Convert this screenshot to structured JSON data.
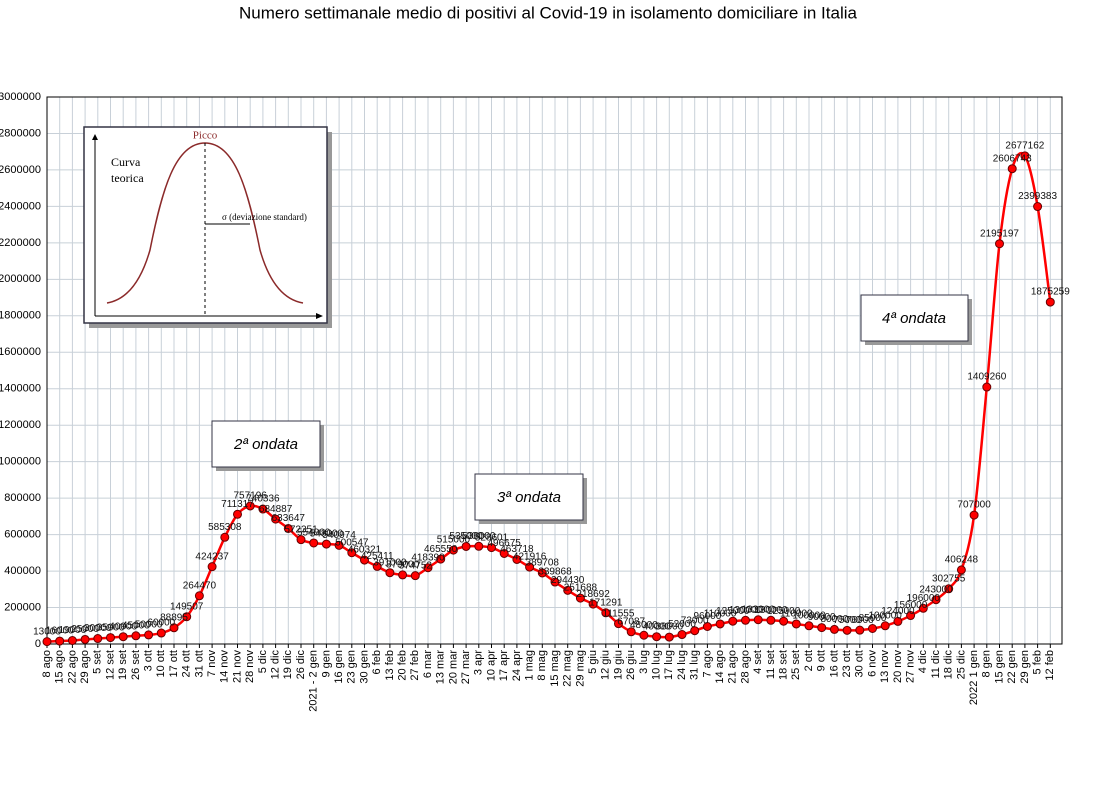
{
  "chart_data": {
    "type": "line",
    "title": "Numero settimanale medio di positivi al Covid-19  in isolamento domiciliare in Italia",
    "categories": [
      "8 ago",
      "15 ago",
      "22 ago",
      "29 ago",
      "5 set",
      "12 set",
      "19 set",
      "26 set",
      "3 ott",
      "10 ott",
      "17 ott",
      "24 ott",
      "31 ott",
      "7 nov",
      "14 nov",
      "21 nov",
      "28 nov",
      "5 dic",
      "12 dic",
      "19 dic",
      "26 dic",
      "2021 - 2 gen",
      "9 gen",
      "16 gen",
      "23 gen",
      "30 gen",
      "6 feb",
      "13 feb",
      "20 feb",
      "27 feb",
      "6 mar",
      "13 mar",
      "20 mar",
      "27 mar",
      "3 apr",
      "10 apr",
      "17 apr",
      "24 apr",
      "1 mag",
      "8 mag",
      "15 mag",
      "22 mag",
      "29 mag",
      "5 giu",
      "12 giu",
      "19 giu",
      "26 giu",
      "3 lug",
      "10 lug",
      "17 lug",
      "24 lug",
      "31 lug",
      "7 ago",
      "14 ago",
      "21 ago",
      "28 ago",
      "4 set",
      "11 set",
      "18 set",
      "25 set",
      "2 ott",
      "9 ott",
      "16 ott",
      "23 ott",
      "30 ott",
      "6 nov",
      "13 nov",
      "20 nov",
      "27 nov",
      "4 dic",
      "11 dic",
      "18 dic",
      "25 dic",
      "2022 1 gen",
      "8 gen",
      "15 gen",
      "22 gen",
      "29 gen",
      "5 feb",
      "12 feb"
    ],
    "series": [
      {
        "name": "Positivi in isolamento domiciliare",
        "color": "#ff0000",
        "values": [
          13000,
          16000,
          19000,
          25000,
          30000,
          35000,
          40000,
          45000,
          50000,
          60000,
          88895,
          149507,
          264470,
          424237,
          585308,
          711317,
          757196,
          740336,
          684887,
          633647,
          572351,
          554000,
          548000,
          540974,
          500547,
          460321,
          425411,
          391000,
          379000,
          374752,
          418390,
          465550,
          515000,
          535000,
          536000,
          528601,
          496675,
          463718,
          421916,
          389708,
          339868,
          294430,
          251688,
          218692,
          171291,
          111555,
          67087,
          48000,
          40000,
          38000,
          52000,
          73000,
          96000,
          110000,
          125000,
          130000,
          133000,
          130000,
          125000,
          110000,
          100000,
          90000,
          80000,
          75000,
          76000,
          85000,
          100000,
          124000,
          156000,
          196000,
          243000,
          302755,
          406248,
          707000,
          1409260,
          2195197,
          2606743,
          2677162,
          2399383,
          1875259
        ]
      }
    ],
    "ylim": [
      0,
      3000000
    ],
    "yticks": [
      0,
      200000,
      400000,
      600000,
      800000,
      1000000,
      1200000,
      1400000,
      1600000,
      1800000,
      2000000,
      2200000,
      2400000,
      2600000,
      2800000,
      3000000
    ],
    "grid": true,
    "annotations": [
      "2ª ondata",
      "3ª ondata",
      "4ª ondata"
    ],
    "inset": {
      "peak": "Picco",
      "label": [
        "Curva",
        "teorica"
      ],
      "sigma": "σ  (deviazione standard)"
    }
  }
}
